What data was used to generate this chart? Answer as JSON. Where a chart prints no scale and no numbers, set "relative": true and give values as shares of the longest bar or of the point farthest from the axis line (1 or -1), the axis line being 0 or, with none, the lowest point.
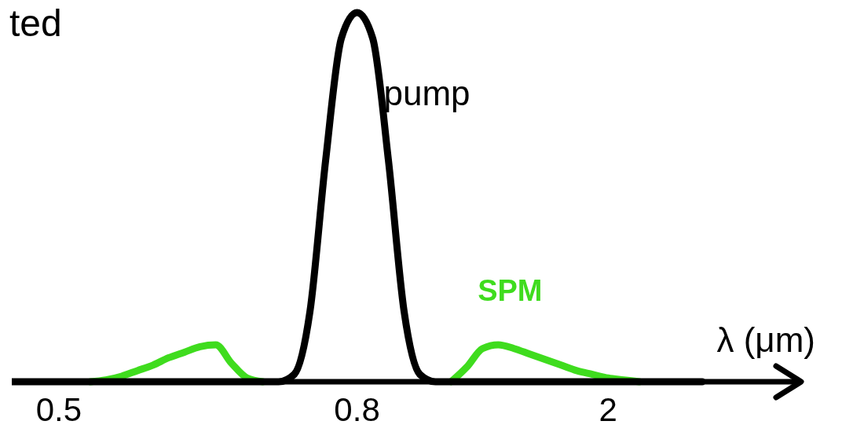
{
  "chart_data": {
    "type": "line",
    "title": "ted",
    "xlabel": "λ (μm)",
    "relative": true,
    "categories": [
      null,
      null,
      null,
      "0.5",
      null,
      null,
      null,
      null,
      null,
      null,
      null,
      null,
      null,
      null,
      null,
      null,
      null,
      null,
      null,
      null,
      null,
      null,
      "0.8",
      null,
      null,
      null,
      null,
      null,
      null,
      null,
      null,
      null,
      null,
      null,
      null,
      null,
      null,
      null,
      "2",
      null,
      null,
      null,
      null,
      null,
      null,
      null,
      null,
      null,
      null,
      null,
      null
    ],
    "series": [
      {
        "name": "SPM",
        "color": "#3fdc1e",
        "values": [
          null,
          null,
          null,
          null,
          null,
          0,
          0.005,
          0.015,
          0.03,
          0.045,
          0.065,
          0.08,
          0.095,
          0.1,
          0.05,
          0.01,
          0,
          null,
          null,
          null,
          null,
          null,
          null,
          null,
          null,
          null,
          null,
          null,
          0,
          0.04,
          0.09,
          0.1,
          0.09,
          0.075,
          0.06,
          0.045,
          0.03,
          0.02,
          0.01,
          0.005,
          0,
          null,
          null,
          null,
          null,
          null,
          null,
          null,
          null,
          null,
          null
        ]
      },
      {
        "name": "pump",
        "color": "#000000",
        "values": [
          0,
          0,
          0,
          0,
          0,
          0,
          0,
          0,
          0,
          0,
          0,
          0,
          0,
          0,
          0,
          0,
          0,
          0,
          0.02,
          0.19,
          0.6,
          0.93,
          1,
          0.93,
          0.6,
          0.19,
          0.02,
          0,
          0,
          0,
          0,
          0,
          0,
          0,
          0,
          0,
          0,
          0,
          0,
          0,
          0,
          0,
          0,
          0,
          0,
          null,
          null,
          null,
          null,
          null,
          null
        ]
      }
    ],
    "marker": "none",
    "line_style": "solid"
  }
}
